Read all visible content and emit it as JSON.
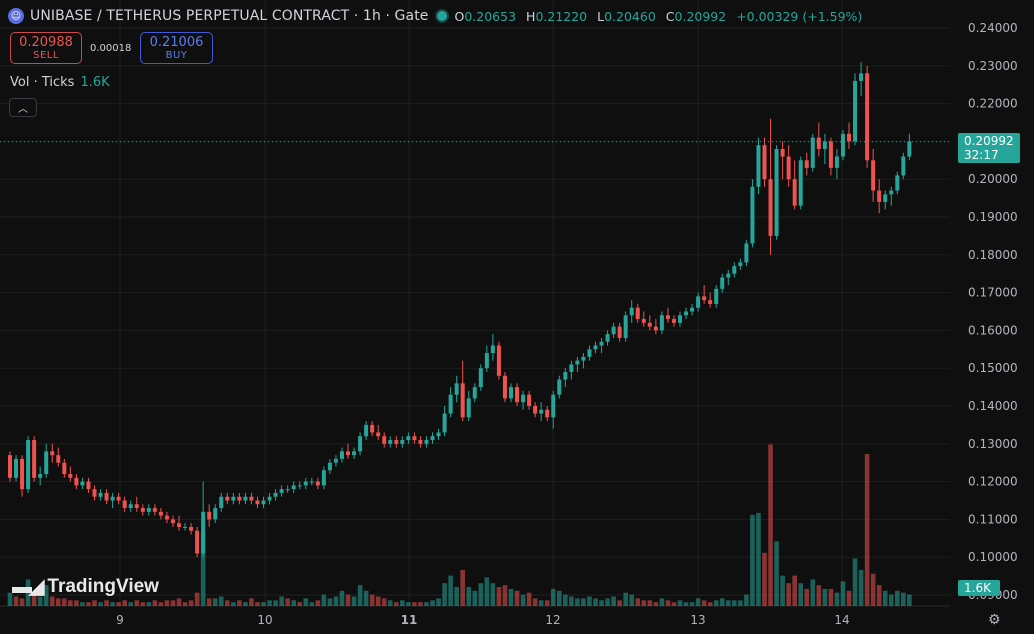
{
  "header": {
    "logo_icon": "unibase-logo-icon",
    "symbol": "UNIBASE / TETHERUS PERPETUAL CONTRACT · 1h · Gate",
    "market_status": "market-open-dot",
    "ohlc": {
      "o_label": "O",
      "o": "0.20653",
      "h_label": "H",
      "h": "0.21220",
      "l_label": "L",
      "l": "0.20460",
      "c_label": "C",
      "c": "0.20992",
      "change": "+0.00329 (+1.59%)"
    }
  },
  "trade": {
    "sell_price": "0.20988",
    "sell_label": "SELL",
    "spread": "0.00018",
    "buy_price": "0.21006",
    "buy_label": "BUY"
  },
  "volume_legend": {
    "label": "Vol · Ticks",
    "value": "1.6K"
  },
  "watermark": "TradingView",
  "price_tag": {
    "price": "0.20992",
    "countdown": "32:17"
  },
  "volume_tag": "1.6K",
  "colors": {
    "up": "#26a69a",
    "down": "#ef5350",
    "background": "#0f0f0f",
    "grid": "#1f1f1f"
  },
  "chart_data": {
    "type": "candlestick",
    "yaxis": {
      "ticks": [
        "0.24000",
        "0.23000",
        "0.22000",
        "0.21000",
        "0.20000",
        "0.19000",
        "0.18000",
        "0.17000",
        "0.16000",
        "0.15000",
        "0.14000",
        "0.13000",
        "0.12000",
        "0.11000",
        "0.10000",
        "0.09000"
      ],
      "range": [
        0.0895,
        0.2425
      ]
    },
    "xaxis": {
      "ticks": [
        {
          "label": "9",
          "bold": false,
          "at": 16
        },
        {
          "label": "10",
          "bold": false,
          "at": 40
        },
        {
          "label": "11",
          "bold": true,
          "at": 64
        },
        {
          "label": "12",
          "bold": false,
          "at": 88
        },
        {
          "label": "13",
          "bold": false,
          "at": 112
        },
        {
          "label": "14",
          "bold": false,
          "at": 136
        }
      ]
    },
    "last_price": 0.20992,
    "grid": true,
    "candles": [
      [
        0.127,
        0.128,
        0.12,
        0.121
      ],
      [
        0.121,
        0.127,
        0.12,
        0.126
      ],
      [
        0.126,
        0.127,
        0.116,
        0.118
      ],
      [
        0.118,
        0.132,
        0.117,
        0.131
      ],
      [
        0.131,
        0.132,
        0.12,
        0.121
      ],
      [
        0.121,
        0.124,
        0.119,
        0.122
      ],
      [
        0.122,
        0.13,
        0.121,
        0.128
      ],
      [
        0.128,
        0.13,
        0.125,
        0.127
      ],
      [
        0.127,
        0.129,
        0.124,
        0.125
      ],
      [
        0.125,
        0.126,
        0.121,
        0.122
      ],
      [
        0.122,
        0.124,
        0.12,
        0.121
      ],
      [
        0.121,
        0.122,
        0.118,
        0.119
      ],
      [
        0.119,
        0.121,
        0.118,
        0.12
      ],
      [
        0.12,
        0.121,
        0.117,
        0.118
      ],
      [
        0.118,
        0.119,
        0.115,
        0.116
      ],
      [
        0.116,
        0.118,
        0.115,
        0.117
      ],
      [
        0.117,
        0.118,
        0.114,
        0.115
      ],
      [
        0.115,
        0.117,
        0.113,
        0.116
      ],
      [
        0.116,
        0.117,
        0.114,
        0.115
      ],
      [
        0.115,
        0.116,
        0.112,
        0.113
      ],
      [
        0.113,
        0.115,
        0.112,
        0.114
      ],
      [
        0.114,
        0.116,
        0.112,
        0.113
      ],
      [
        0.113,
        0.114,
        0.111,
        0.112
      ],
      [
        0.112,
        0.114,
        0.111,
        0.113
      ],
      [
        0.113,
        0.114,
        0.111,
        0.112
      ],
      [
        0.112,
        0.113,
        0.11,
        0.111
      ],
      [
        0.111,
        0.112,
        0.109,
        0.11
      ],
      [
        0.11,
        0.111,
        0.108,
        0.109
      ],
      [
        0.109,
        0.111,
        0.107,
        0.108
      ],
      [
        0.108,
        0.109,
        0.107,
        0.108
      ],
      [
        0.108,
        0.109,
        0.106,
        0.107
      ],
      [
        0.107,
        0.108,
        0.1,
        0.101
      ],
      [
        0.101,
        0.12,
        0.1,
        0.112
      ],
      [
        0.112,
        0.114,
        0.108,
        0.11
      ],
      [
        0.11,
        0.114,
        0.109,
        0.113
      ],
      [
        0.113,
        0.117,
        0.112,
        0.116
      ],
      [
        0.116,
        0.117,
        0.114,
        0.115
      ],
      [
        0.115,
        0.117,
        0.114,
        0.116
      ],
      [
        0.116,
        0.117,
        0.114,
        0.115
      ],
      [
        0.115,
        0.117,
        0.114,
        0.116
      ],
      [
        0.116,
        0.117,
        0.114,
        0.115
      ],
      [
        0.115,
        0.116,
        0.113,
        0.114
      ],
      [
        0.114,
        0.116,
        0.113,
        0.115
      ],
      [
        0.115,
        0.117,
        0.114,
        0.116
      ],
      [
        0.116,
        0.118,
        0.115,
        0.117
      ],
      [
        0.117,
        0.119,
        0.116,
        0.118
      ],
      [
        0.118,
        0.119,
        0.117,
        0.118
      ],
      [
        0.118,
        0.12,
        0.117,
        0.119
      ],
      [
        0.119,
        0.12,
        0.118,
        0.119
      ],
      [
        0.119,
        0.121,
        0.118,
        0.12
      ],
      [
        0.12,
        0.121,
        0.119,
        0.12
      ],
      [
        0.12,
        0.121,
        0.118,
        0.119
      ],
      [
        0.119,
        0.124,
        0.118,
        0.123
      ],
      [
        0.123,
        0.126,
        0.122,
        0.125
      ],
      [
        0.125,
        0.127,
        0.124,
        0.126
      ],
      [
        0.126,
        0.129,
        0.125,
        0.128
      ],
      [
        0.128,
        0.13,
        0.126,
        0.127
      ],
      [
        0.127,
        0.129,
        0.126,
        0.128
      ],
      [
        0.128,
        0.133,
        0.127,
        0.132
      ],
      [
        0.132,
        0.136,
        0.131,
        0.135
      ],
      [
        0.135,
        0.136,
        0.132,
        0.133
      ],
      [
        0.133,
        0.135,
        0.131,
        0.132
      ],
      [
        0.132,
        0.133,
        0.129,
        0.13
      ],
      [
        0.13,
        0.132,
        0.129,
        0.131
      ],
      [
        0.131,
        0.132,
        0.129,
        0.13
      ],
      [
        0.13,
        0.132,
        0.129,
        0.131
      ],
      [
        0.131,
        0.133,
        0.13,
        0.132
      ],
      [
        0.132,
        0.133,
        0.13,
        0.131
      ],
      [
        0.131,
        0.132,
        0.129,
        0.13
      ],
      [
        0.13,
        0.132,
        0.129,
        0.131
      ],
      [
        0.131,
        0.133,
        0.13,
        0.132
      ],
      [
        0.132,
        0.134,
        0.131,
        0.133
      ],
      [
        0.133,
        0.14,
        0.132,
        0.138
      ],
      [
        0.138,
        0.145,
        0.137,
        0.143
      ],
      [
        0.143,
        0.148,
        0.141,
        0.146
      ],
      [
        0.146,
        0.152,
        0.136,
        0.137
      ],
      [
        0.137,
        0.144,
        0.136,
        0.142
      ],
      [
        0.142,
        0.146,
        0.141,
        0.145
      ],
      [
        0.145,
        0.151,
        0.144,
        0.15
      ],
      [
        0.15,
        0.156,
        0.149,
        0.154
      ],
      [
        0.154,
        0.159,
        0.152,
        0.156
      ],
      [
        0.156,
        0.157,
        0.147,
        0.148
      ],
      [
        0.148,
        0.149,
        0.141,
        0.142
      ],
      [
        0.142,
        0.146,
        0.141,
        0.145
      ],
      [
        0.145,
        0.146,
        0.14,
        0.141
      ],
      [
        0.141,
        0.144,
        0.139,
        0.143
      ],
      [
        0.143,
        0.144,
        0.139,
        0.14
      ],
      [
        0.14,
        0.141,
        0.137,
        0.138
      ],
      [
        0.138,
        0.141,
        0.136,
        0.139
      ],
      [
        0.139,
        0.14,
        0.136,
        0.137
      ],
      [
        0.137,
        0.144,
        0.134,
        0.143
      ],
      [
        0.143,
        0.148,
        0.142,
        0.147
      ],
      [
        0.147,
        0.15,
        0.145,
        0.149
      ],
      [
        0.149,
        0.152,
        0.147,
        0.151
      ],
      [
        0.151,
        0.153,
        0.149,
        0.152
      ],
      [
        0.152,
        0.154,
        0.15,
        0.153
      ],
      [
        0.153,
        0.156,
        0.152,
        0.155
      ],
      [
        0.155,
        0.157,
        0.154,
        0.156
      ],
      [
        0.156,
        0.158,
        0.154,
        0.157
      ],
      [
        0.157,
        0.16,
        0.156,
        0.159
      ],
      [
        0.159,
        0.162,
        0.158,
        0.161
      ],
      [
        0.161,
        0.162,
        0.157,
        0.158
      ],
      [
        0.158,
        0.165,
        0.157,
        0.164
      ],
      [
        0.164,
        0.168,
        0.162,
        0.166
      ],
      [
        0.166,
        0.167,
        0.162,
        0.163
      ],
      [
        0.163,
        0.165,
        0.161,
        0.162
      ],
      [
        0.162,
        0.164,
        0.16,
        0.161
      ],
      [
        0.161,
        0.163,
        0.159,
        0.16
      ],
      [
        0.16,
        0.165,
        0.159,
        0.164
      ],
      [
        0.164,
        0.166,
        0.162,
        0.163
      ],
      [
        0.163,
        0.164,
        0.161,
        0.162
      ],
      [
        0.162,
        0.165,
        0.161,
        0.164
      ],
      [
        0.164,
        0.166,
        0.163,
        0.165
      ],
      [
        0.165,
        0.167,
        0.164,
        0.166
      ],
      [
        0.166,
        0.17,
        0.165,
        0.169
      ],
      [
        0.169,
        0.172,
        0.167,
        0.168
      ],
      [
        0.168,
        0.17,
        0.166,
        0.167
      ],
      [
        0.167,
        0.172,
        0.166,
        0.171
      ],
      [
        0.171,
        0.175,
        0.17,
        0.174
      ],
      [
        0.174,
        0.176,
        0.172,
        0.175
      ],
      [
        0.175,
        0.178,
        0.174,
        0.177
      ],
      [
        0.177,
        0.179,
        0.176,
        0.178
      ],
      [
        0.178,
        0.184,
        0.177,
        0.183
      ],
      [
        0.183,
        0.2,
        0.182,
        0.198
      ],
      [
        0.198,
        0.211,
        0.196,
        0.209
      ],
      [
        0.209,
        0.211,
        0.198,
        0.2
      ],
      [
        0.2,
        0.216,
        0.18,
        0.185
      ],
      [
        0.185,
        0.209,
        0.184,
        0.208
      ],
      [
        0.208,
        0.21,
        0.2,
        0.206
      ],
      [
        0.206,
        0.209,
        0.198,
        0.2
      ],
      [
        0.2,
        0.205,
        0.192,
        0.193
      ],
      [
        0.193,
        0.206,
        0.192,
        0.205
      ],
      [
        0.205,
        0.207,
        0.201,
        0.203
      ],
      [
        0.203,
        0.212,
        0.202,
        0.211
      ],
      [
        0.211,
        0.215,
        0.206,
        0.208
      ],
      [
        0.208,
        0.212,
        0.204,
        0.21
      ],
      [
        0.21,
        0.211,
        0.201,
        0.203
      ],
      [
        0.203,
        0.208,
        0.2,
        0.206
      ],
      [
        0.206,
        0.213,
        0.205,
        0.212
      ],
      [
        0.212,
        0.215,
        0.208,
        0.21
      ],
      [
        0.21,
        0.228,
        0.209,
        0.226
      ],
      [
        0.226,
        0.231,
        0.222,
        0.228
      ],
      [
        0.228,
        0.23,
        0.203,
        0.205
      ],
      [
        0.205,
        0.208,
        0.194,
        0.197
      ],
      [
        0.197,
        0.2,
        0.191,
        0.194
      ],
      [
        0.194,
        0.197,
        0.192,
        0.196
      ],
      [
        0.196,
        0.198,
        0.193,
        0.197
      ],
      [
        0.197,
        0.202,
        0.196,
        0.201
      ],
      [
        0.201,
        0.207,
        0.2,
        0.206
      ],
      [
        0.206,
        0.212,
        0.205,
        0.21
      ]
    ],
    "volume": [
      [
        0.7,
        1
      ],
      [
        0.5,
        0
      ],
      [
        0.4,
        0
      ],
      [
        1.4,
        1
      ],
      [
        0.6,
        0
      ],
      [
        0.5,
        1
      ],
      [
        1.1,
        1
      ],
      [
        0.5,
        0
      ],
      [
        0.4,
        0
      ],
      [
        0.4,
        0
      ],
      [
        0.3,
        0
      ],
      [
        0.3,
        0
      ],
      [
        0.2,
        1
      ],
      [
        0.2,
        0
      ],
      [
        0.3,
        0
      ],
      [
        0.2,
        1
      ],
      [
        0.3,
        0
      ],
      [
        0.2,
        1
      ],
      [
        0.2,
        0
      ],
      [
        0.3,
        0
      ],
      [
        0.2,
        1
      ],
      [
        0.3,
        0
      ],
      [
        0.2,
        0
      ],
      [
        0.2,
        1
      ],
      [
        0.3,
        0
      ],
      [
        0.2,
        0
      ],
      [
        0.3,
        0
      ],
      [
        0.3,
        0
      ],
      [
        0.4,
        0
      ],
      [
        0.2,
        0
      ],
      [
        0.3,
        0
      ],
      [
        0.7,
        0
      ],
      [
        3.9,
        1
      ],
      [
        0.4,
        0
      ],
      [
        0.4,
        1
      ],
      [
        0.5,
        1
      ],
      [
        0.3,
        0
      ],
      [
        0.2,
        1
      ],
      [
        0.3,
        0
      ],
      [
        0.2,
        1
      ],
      [
        0.4,
        0
      ],
      [
        0.2,
        0
      ],
      [
        0.2,
        1
      ],
      [
        0.3,
        1
      ],
      [
        0.3,
        1
      ],
      [
        0.5,
        1
      ],
      [
        0.4,
        0
      ],
      [
        0.3,
        1
      ],
      [
        0.2,
        0
      ],
      [
        0.4,
        1
      ],
      [
        0.2,
        1
      ],
      [
        0.3,
        0
      ],
      [
        0.6,
        1
      ],
      [
        0.4,
        1
      ],
      [
        0.5,
        1
      ],
      [
        0.8,
        1
      ],
      [
        0.6,
        0
      ],
      [
        0.5,
        1
      ],
      [
        1.1,
        1
      ],
      [
        0.8,
        1
      ],
      [
        0.6,
        0
      ],
      [
        0.5,
        0
      ],
      [
        0.4,
        0
      ],
      [
        0.3,
        1
      ],
      [
        0.2,
        0
      ],
      [
        0.3,
        1
      ],
      [
        0.2,
        1
      ],
      [
        0.2,
        0
      ],
      [
        0.2,
        0
      ],
      [
        0.2,
        1
      ],
      [
        0.3,
        1
      ],
      [
        0.4,
        1
      ],
      [
        1.2,
        1
      ],
      [
        1.6,
        1
      ],
      [
        1.0,
        1
      ],
      [
        1.9,
        0
      ],
      [
        1.0,
        1
      ],
      [
        0.8,
        1
      ],
      [
        1.2,
        1
      ],
      [
        1.5,
        1
      ],
      [
        1.2,
        1
      ],
      [
        1.0,
        0
      ],
      [
        1.1,
        0
      ],
      [
        0.9,
        1
      ],
      [
        0.8,
        0
      ],
      [
        0.6,
        1
      ],
      [
        0.7,
        0
      ],
      [
        0.4,
        0
      ],
      [
        0.3,
        1
      ],
      [
        0.3,
        0
      ],
      [
        0.9,
        1
      ],
      [
        0.8,
        1
      ],
      [
        0.6,
        1
      ],
      [
        0.5,
        1
      ],
      [
        0.4,
        1
      ],
      [
        0.4,
        1
      ],
      [
        0.5,
        1
      ],
      [
        0.4,
        1
      ],
      [
        0.3,
        1
      ],
      [
        0.4,
        1
      ],
      [
        0.5,
        1
      ],
      [
        0.3,
        0
      ],
      [
        0.7,
        1
      ],
      [
        0.6,
        1
      ],
      [
        0.4,
        0
      ],
      [
        0.3,
        0
      ],
      [
        0.3,
        0
      ],
      [
        0.2,
        0
      ],
      [
        0.4,
        1
      ],
      [
        0.3,
        0
      ],
      [
        0.2,
        0
      ],
      [
        0.3,
        1
      ],
      [
        0.2,
        1
      ],
      [
        0.2,
        1
      ],
      [
        0.4,
        1
      ],
      [
        0.3,
        0
      ],
      [
        0.2,
        0
      ],
      [
        0.3,
        1
      ],
      [
        0.4,
        1
      ],
      [
        0.3,
        1
      ],
      [
        0.3,
        1
      ],
      [
        0.3,
        1
      ],
      [
        0.6,
        1
      ],
      [
        4.8,
        1
      ],
      [
        4.9,
        1
      ],
      [
        2.8,
        0
      ],
      [
        8.5,
        0
      ],
      [
        3.4,
        1
      ],
      [
        1.6,
        1
      ],
      [
        1.2,
        0
      ],
      [
        1.6,
        0
      ],
      [
        1.2,
        1
      ],
      [
        0.9,
        0
      ],
      [
        1.4,
        1
      ],
      [
        1.1,
        0
      ],
      [
        0.9,
        1
      ],
      [
        0.9,
        0
      ],
      [
        0.7,
        1
      ],
      [
        1.3,
        1
      ],
      [
        0.8,
        0
      ],
      [
        2.5,
        1
      ],
      [
        1.9,
        1
      ],
      [
        8.0,
        0
      ],
      [
        1.7,
        0
      ],
      [
        1.1,
        0
      ],
      [
        0.8,
        1
      ],
      [
        0.6,
        1
      ],
      [
        0.8,
        1
      ],
      [
        0.7,
        1
      ],
      [
        0.6,
        1
      ]
    ]
  }
}
